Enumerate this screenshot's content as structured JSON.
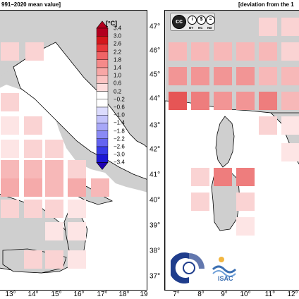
{
  "titles": {
    "left": "991–2020 mean value]",
    "right": "[deviation from the 1"
  },
  "colorbar": {
    "unit": "[°C]",
    "labels": [
      "3.4",
      "3.0",
      "2.6",
      "2.2",
      "1.8",
      "1.4",
      "1.0",
      "0.6",
      "0.2",
      "−0.2",
      "−0.6",
      "−1.0",
      "−1.4",
      "−1.8",
      "−2.2",
      "−2.6",
      "−3.0",
      "−3.4"
    ],
    "colors": {
      "3.4": "#b2001f",
      "3.0": "#d4171c",
      "2.6": "#e8383b",
      "2.2": "#f06466",
      "1.8": "#f58a8a",
      "1.4": "#f8a7a6",
      "1.0": "#fbc3c2",
      "0.6": "#fddcdc",
      "0.2": "#ffffff",
      "-0.2": "#ffffff",
      "-0.6": "#dcdcfd",
      "-1.0": "#c3c3fb",
      "-1.4": "#a7a7f8",
      "-1.8": "#8a8af5",
      "-2.2": "#6464f0",
      "-2.6": "#383be8",
      "-3.0": "#1c17d4",
      "-3.4": "#1f00b2"
    }
  },
  "axes": {
    "lat_labels": [
      "47°",
      "46°",
      "45°",
      "44°",
      "43°",
      "42°",
      "41°",
      "40°",
      "39°",
      "38°",
      "37°"
    ],
    "lon_labels_left": [
      "13°",
      "14°",
      "15°",
      "16°",
      "17°",
      "18°",
      "19"
    ],
    "lon_labels_right": [
      "7°",
      "8°",
      "9°",
      "10°",
      "11°",
      "12°"
    ]
  },
  "badge": {
    "text": "cc",
    "by": "BY",
    "nc": "NC",
    "nd": "ND"
  },
  "isac_label": "ISAC",
  "colors": {
    "c1": "#f5aaaa",
    "c2": "#f7b8b8",
    "c3": "#fad3d3",
    "c4": "#fde5e5",
    "c5": "#f29595",
    "c6": "#ee7d7d",
    "c7": "#e65555",
    "land": "#cfcfcf"
  }
}
